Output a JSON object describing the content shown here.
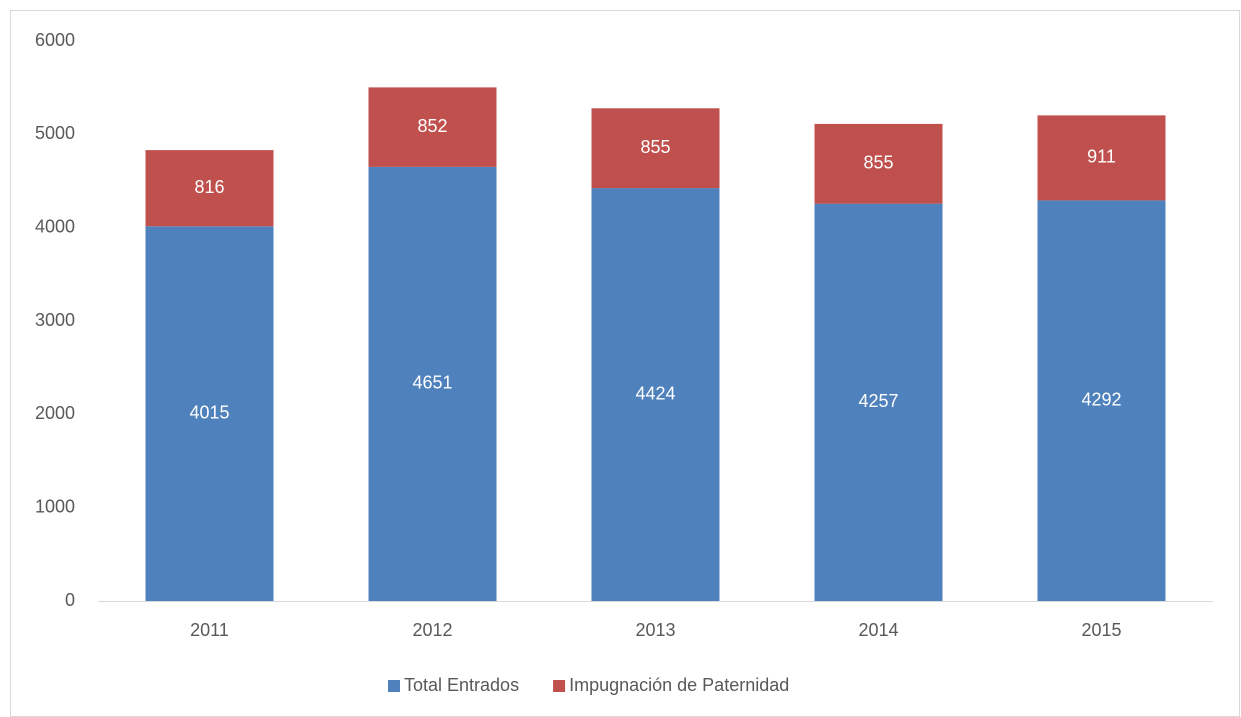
{
  "chart_data": {
    "type": "bar",
    "stacked": true,
    "categories": [
      "2011",
      "2012",
      "2013",
      "2014",
      "2015"
    ],
    "series": [
      {
        "name": "Total Entrados",
        "color": "#4f81bd",
        "values": [
          4015,
          4651,
          4424,
          4257,
          4292
        ]
      },
      {
        "name": "Impugnación de Paternidad",
        "color": "#c0504d",
        "values": [
          816,
          852,
          855,
          855,
          911
        ]
      }
    ],
    "ylim": [
      0,
      6000
    ],
    "yticks": [
      0,
      1000,
      2000,
      3000,
      4000,
      5000,
      6000
    ],
    "grid": false,
    "legend": "bottom"
  }
}
